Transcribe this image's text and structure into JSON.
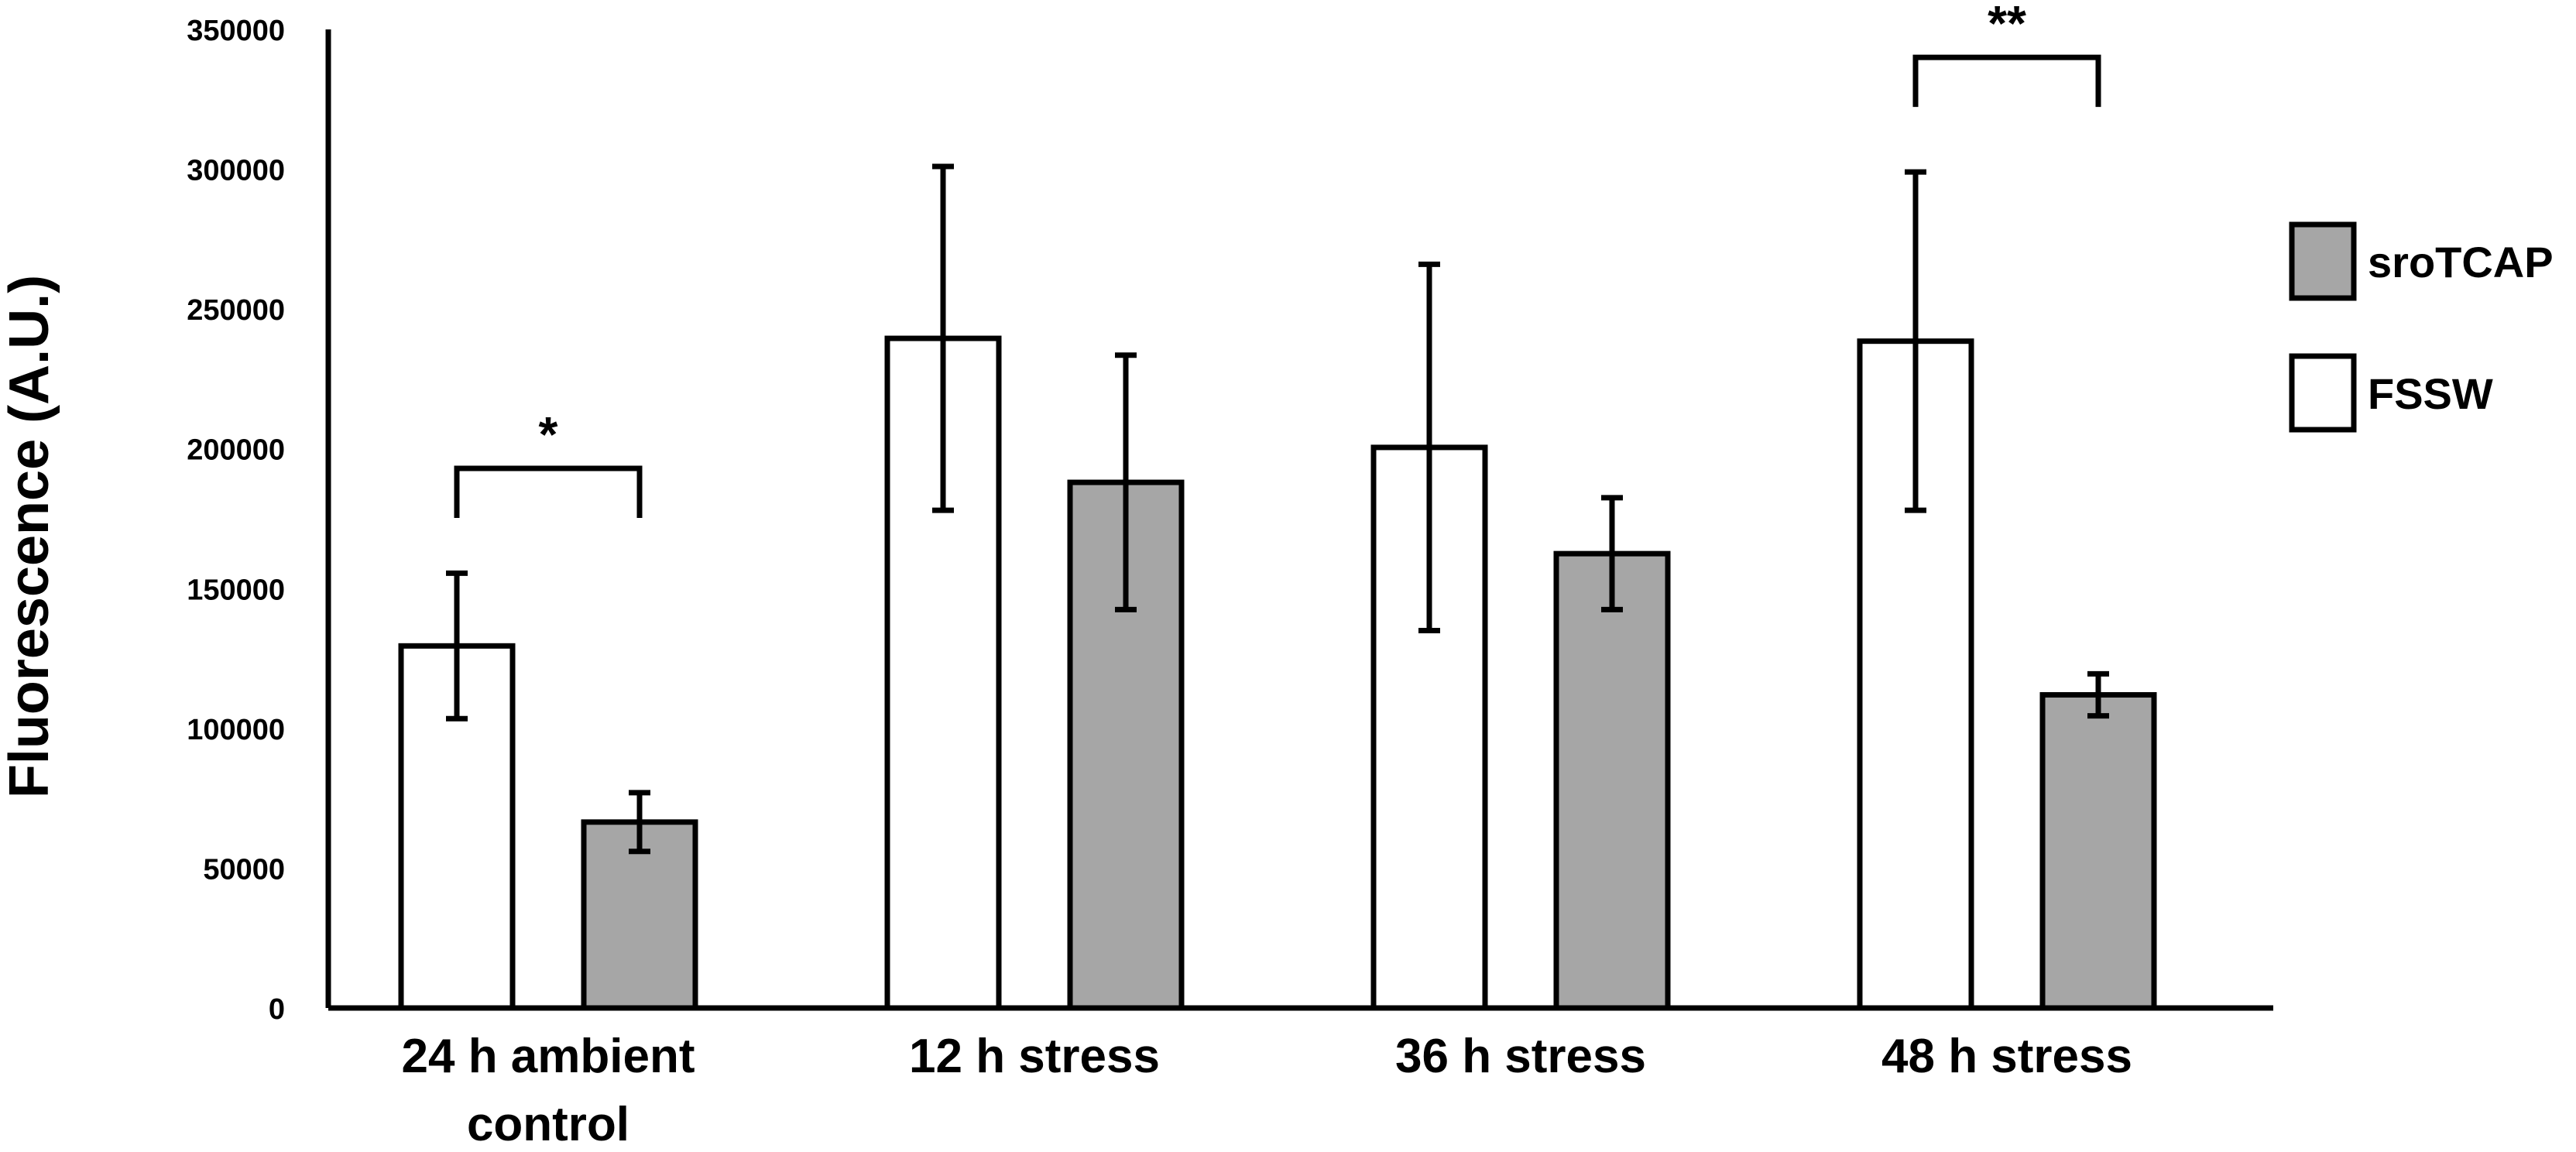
{
  "chart_data": {
    "type": "bar",
    "ylabel": "Fluorescence (A.U.)",
    "xlabel": "",
    "ylim": [
      0,
      350000
    ],
    "yticks": [
      0,
      50000,
      100000,
      150000,
      200000,
      250000,
      300000,
      350000
    ],
    "grid": false,
    "legend_position": "right",
    "categories": [
      [
        "24 h ambient",
        "control"
      ],
      [
        "12 h stress"
      ],
      [
        "36 h stress"
      ],
      [
        "48 h stress"
      ]
    ],
    "series": [
      {
        "name": "FSSW",
        "color": "#ffffff",
        "values": [
          129500,
          239500,
          200500,
          238500
        ],
        "error": [
          26000,
          61500,
          65500,
          60500
        ]
      },
      {
        "name": "sroTCAP",
        "color": "#a6a6a6",
        "values": [
          66500,
          188000,
          162500,
          112000
        ],
        "error": [
          10500,
          45500,
          20000,
          7500
        ]
      }
    ],
    "significance": [
      {
        "category_index": 0,
        "label": "*",
        "bracket_y": 193000
      },
      {
        "category_index": 3,
        "label": "**",
        "bracket_y": 340000
      }
    ]
  }
}
